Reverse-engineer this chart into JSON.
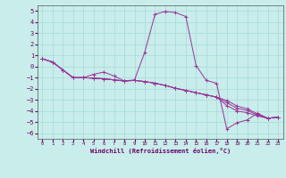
{
  "background_color": "#c8edea",
  "grid_color": "#aadddd",
  "line_color": "#993399",
  "x_hours": [
    0,
    1,
    2,
    3,
    4,
    5,
    6,
    7,
    8,
    9,
    10,
    11,
    12,
    13,
    14,
    15,
    16,
    17,
    18,
    19,
    20,
    21,
    22,
    23
  ],
  "line1": [
    0.7,
    0.4,
    -0.3,
    -1.0,
    -1.0,
    -0.7,
    -0.5,
    -0.85,
    -1.3,
    -1.2,
    1.3,
    4.7,
    4.95,
    4.85,
    4.5,
    0.1,
    -1.25,
    -1.5,
    -5.6,
    -5.05,
    -4.8,
    -4.2,
    -4.65,
    -4.55
  ],
  "line2": [
    0.7,
    0.4,
    -0.3,
    -1.0,
    -1.0,
    -1.05,
    -1.1,
    -1.2,
    -1.3,
    -1.25,
    -1.35,
    -1.5,
    -1.7,
    -1.95,
    -2.15,
    -2.35,
    -2.55,
    -2.75,
    -3.5,
    -4.0,
    -4.15,
    -4.45,
    -4.65,
    -4.55
  ],
  "line3": [
    0.7,
    0.4,
    -0.3,
    -1.0,
    -1.0,
    -1.05,
    -1.1,
    -1.2,
    -1.3,
    -1.25,
    -1.35,
    -1.5,
    -1.7,
    -1.95,
    -2.15,
    -2.35,
    -2.55,
    -2.75,
    -3.05,
    -3.55,
    -3.8,
    -4.25,
    -4.65,
    -4.55
  ],
  "line4": [
    0.7,
    0.4,
    -0.3,
    -1.0,
    -1.0,
    -1.05,
    -1.1,
    -1.2,
    -1.3,
    -1.25,
    -1.35,
    -1.5,
    -1.7,
    -1.95,
    -2.15,
    -2.35,
    -2.55,
    -2.75,
    -3.25,
    -3.75,
    -3.95,
    -4.35,
    -4.65,
    -4.55
  ],
  "ylim": [
    -6.5,
    5.5
  ],
  "yticks": [
    -6,
    -5,
    -4,
    -3,
    -2,
    -1,
    0,
    1,
    2,
    3,
    4,
    5
  ],
  "xticks": [
    0,
    1,
    2,
    3,
    4,
    5,
    6,
    7,
    8,
    9,
    10,
    11,
    12,
    13,
    14,
    15,
    16,
    17,
    18,
    19,
    20,
    21,
    22,
    23
  ],
  "xlabel": "Windchill (Refroidissement éolien,°C)",
  "xlabel_color": "#660066",
  "tick_color": "#660066",
  "spine_color": "#555555"
}
